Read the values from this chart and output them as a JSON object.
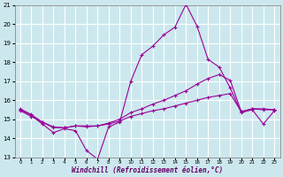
{
  "background_color": "#cce8ee",
  "grid_color": "#ffffff",
  "line_color": "#990099",
  "xlabel": "Windchill (Refroidissement éolien,°C)",
  "ylim": [
    13,
    21
  ],
  "yticks": [
    13,
    14,
    15,
    16,
    17,
    18,
    19,
    20,
    21
  ],
  "xlim": [
    -0.5,
    23.5
  ],
  "x_labels": [
    "0",
    "1",
    "2",
    "3",
    "4",
    "5",
    "6",
    "7",
    "8",
    "9",
    "10",
    "11",
    "12",
    "13",
    "14",
    "15",
    "16",
    "17",
    "18",
    "19",
    "20",
    "21",
    "22",
    "23"
  ],
  "line1_y": [
    15.5,
    15.2,
    14.75,
    14.3,
    14.5,
    14.4,
    13.35,
    12.9,
    14.6,
    14.85,
    17.0,
    18.4,
    18.85,
    19.45,
    19.85,
    21.05,
    19.9,
    18.15,
    17.75,
    16.65,
    15.35,
    15.5,
    14.75,
    15.45
  ],
  "line2_y": [
    15.55,
    15.25,
    14.85,
    14.55,
    14.55,
    14.65,
    14.6,
    14.65,
    14.8,
    15.0,
    15.35,
    15.55,
    15.8,
    16.0,
    16.25,
    16.5,
    16.85,
    17.15,
    17.35,
    17.05,
    15.4,
    15.55,
    15.55,
    15.5
  ],
  "line3_y": [
    15.45,
    15.15,
    14.85,
    14.6,
    14.55,
    14.65,
    14.65,
    14.65,
    14.75,
    14.9,
    15.15,
    15.3,
    15.45,
    15.55,
    15.7,
    15.85,
    16.0,
    16.15,
    16.25,
    16.35,
    15.4,
    15.55,
    15.5,
    15.5
  ]
}
